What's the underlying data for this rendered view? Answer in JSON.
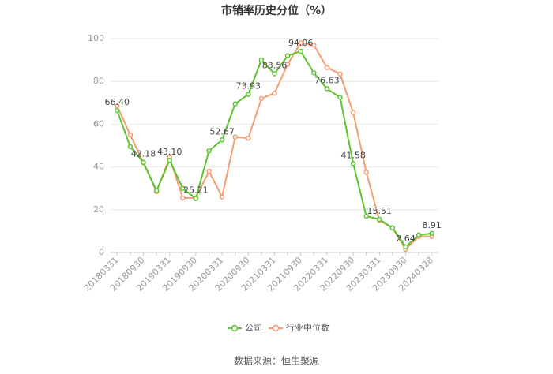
{
  "chart_data": {
    "type": "line",
    "title": "市销率历史分位（%）",
    "source": "数据来源：恒生聚源",
    "categories": [
      "20180331",
      null,
      "20180930",
      null,
      "20190331",
      null,
      "20190930",
      null,
      "20200331",
      null,
      "20200930",
      null,
      "20210331",
      null,
      "20210930",
      null,
      "20220331",
      null,
      "20220930",
      null,
      "20230331",
      null,
      "20230930",
      null,
      "20240328"
    ],
    "ylim": [
      0,
      100
    ],
    "yticks": [
      0,
      20,
      40,
      60,
      80,
      100
    ],
    "grid": true,
    "legend": "bottom",
    "series": [
      {
        "name": "公司",
        "color": "#5cc42f",
        "values": [
          66.4,
          49.5,
          42.18,
          28.9,
          43.1,
          30,
          25.21,
          47.5,
          52.67,
          69.5,
          73.93,
          90,
          83.56,
          92,
          94.06,
          84,
          76.63,
          72.5,
          41.58,
          17,
          15.51,
          11.5,
          2.64,
          8.2,
          8.91
        ],
        "value_labels": [
          "66.40",
          null,
          "42.18",
          null,
          "43.10",
          null,
          "25.21",
          null,
          "52.67",
          null,
          "73.93",
          null,
          "83.56",
          null,
          "94.06",
          null,
          "76.63",
          null,
          "41.58",
          null,
          "15.51",
          null,
          "2.64",
          null,
          "8.91"
        ]
      },
      {
        "name": "行业中位数",
        "color": "#f59c72",
        "values": [
          68.5,
          55,
          42,
          28.5,
          44.5,
          25.5,
          25.5,
          38,
          26,
          54,
          53.5,
          72,
          74.5,
          88,
          98,
          97,
          86.5,
          83.5,
          65.5,
          37.5,
          15,
          11.5,
          1.5,
          7.5,
          7.5
        ]
      }
    ]
  }
}
